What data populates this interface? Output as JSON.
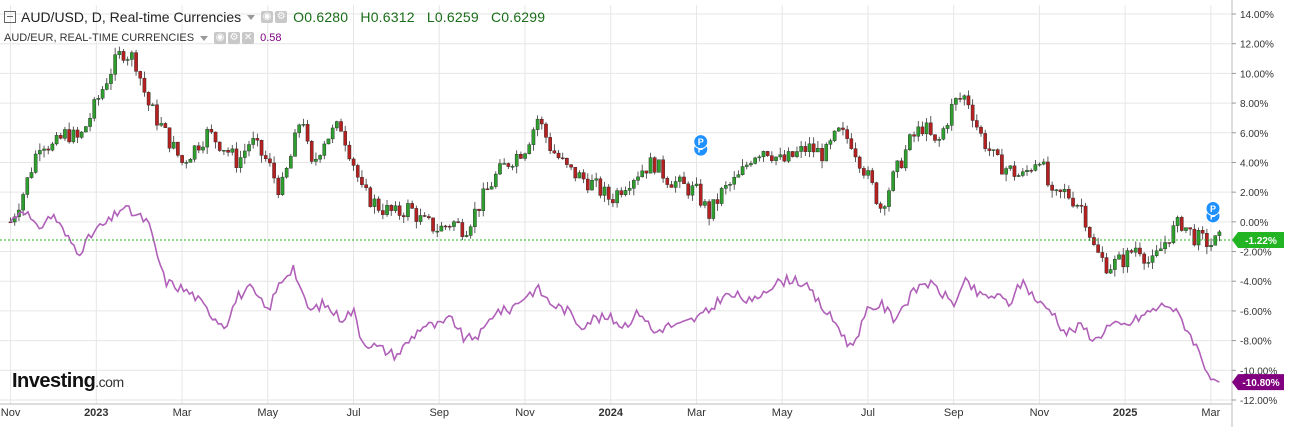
{
  "header": {
    "primary_title": "AUD/USD, D, Real-time Currencies",
    "open": "O0.6280",
    "high": "H0.6312",
    "low": "L0.6259",
    "close": "C0.6299",
    "secondary_title": "AUD/EUR, REAL-TIME CURRENCIES",
    "secondary_value": "0.58"
  },
  "logo": {
    "brand": "Investing",
    "suffix": ".com"
  },
  "colors": {
    "up": "#2e9e2e",
    "down": "#b52020",
    "compare_line": "#b060b8",
    "current_green": "#22b422",
    "current_purple": "#800080",
    "grid": "#e6e6e6",
    "event_marker": "#1e90ff"
  },
  "chart_data": {
    "type": "line",
    "title": "AUD/USD, D, Real-time Currencies",
    "comparison": "AUD/EUR, REAL-TIME CURRENCIES",
    "y_unit": "percent change",
    "ylim": [
      -12,
      14
    ],
    "y_ticks": [
      "14.00%",
      "12.00%",
      "10.00%",
      "8.00%",
      "6.00%",
      "4.00%",
      "2.00%",
      "0.00%",
      "-2.00%",
      "-4.00%",
      "-6.00%",
      "-8.00%",
      "-10.00%",
      "-12.00%"
    ],
    "y_tick_values": [
      14,
      12,
      10,
      8,
      6,
      4,
      2,
      0,
      -2,
      -4,
      -6,
      -8,
      -10,
      -12
    ],
    "x_ticks": [
      "Nov",
      "2023",
      "Mar",
      "May",
      "Jul",
      "Sep",
      "Nov",
      "2024",
      "Mar",
      "May",
      "Jul",
      "Sep",
      "Nov",
      "2025",
      "Mar"
    ],
    "x_tick_bold": [
      false,
      true,
      false,
      false,
      false,
      false,
      false,
      true,
      false,
      false,
      false,
      false,
      false,
      true,
      false
    ],
    "x_tick_months": [
      0,
      2,
      4,
      6,
      8,
      10,
      12,
      14,
      16,
      18,
      20,
      22,
      24,
      26,
      28
    ],
    "x_range_months": [
      -0.2,
      28.4
    ],
    "grid": true,
    "series": [
      {
        "name": "AUD/USD",
        "style": "candlestick",
        "x_months": [
          0,
          0.3,
          0.7,
          1,
          1.3,
          1.6,
          2,
          2.3,
          2.6,
          2.9,
          3.2,
          3.6,
          4,
          4.3,
          4.6,
          5,
          5.3,
          5.6,
          6,
          6.3,
          6.6,
          6.8,
          7,
          7.3,
          7.7,
          8,
          8.2,
          8.6,
          9,
          9.3,
          9.6,
          10,
          10.3,
          10.6,
          11,
          11.3,
          11.6,
          12,
          12.3,
          12.6,
          13,
          13.3,
          13.6,
          14,
          14.3,
          14.7,
          15,
          15.3,
          15.6,
          16,
          16.3,
          16.6,
          17,
          17.3,
          17.6,
          18,
          18.3,
          18.6,
          19,
          19.3,
          19.6,
          20,
          20.3,
          20.6,
          21,
          21.3,
          21.6,
          22,
          22.3,
          22.6,
          23,
          23.3,
          23.6,
          24,
          24.3,
          24.6,
          25,
          25.3,
          25.6,
          26,
          26.3,
          26.6,
          27,
          27.3,
          27.6,
          28,
          28.2
        ],
        "values": [
          0.0,
          2.0,
          5.5,
          5.0,
          6.0,
          5.5,
          8.0,
          10.0,
          11.5,
          11.0,
          8.0,
          6.0,
          4.0,
          5.0,
          6.0,
          5.0,
          4.0,
          5.5,
          4.0,
          2.0,
          5.0,
          7.5,
          3.5,
          5.5,
          6.5,
          4.0,
          2.0,
          1.0,
          0.5,
          1.0,
          0.0,
          -0.5,
          0.0,
          -0.5,
          1.5,
          3.0,
          4.0,
          5.0,
          7.0,
          5.0,
          3.5,
          3.0,
          2.5,
          1.5,
          2.5,
          3.5,
          4.0,
          3.0,
          2.5,
          2.0,
          0.5,
          2.0,
          3.0,
          4.5,
          5.0,
          4.0,
          4.5,
          5.0,
          4.5,
          6.0,
          5.5,
          3.0,
          1.0,
          3.0,
          5.5,
          6.5,
          5.0,
          8.0,
          8.5,
          6.0,
          4.0,
          3.5,
          3.0,
          4.5,
          1.5,
          2.0,
          1.0,
          -2.0,
          -3.0,
          -2.5,
          -1.5,
          -3.0,
          -1.0,
          0.0,
          -1.0,
          -1.5,
          -1.2
        ],
        "current_label": "-1.22%",
        "current_value": -1.22
      },
      {
        "name": "AUD/EUR",
        "style": "line",
        "x_months": [
          0,
          0.3,
          0.6,
          1,
          1.3,
          1.6,
          2,
          2.3,
          2.6,
          2.9,
          3.2,
          3.6,
          4,
          4.3,
          4.6,
          5,
          5.3,
          5.6,
          6,
          6.3,
          6.6,
          6.8,
          7,
          7.3,
          7.7,
          8,
          8.2,
          8.6,
          9,
          9.3,
          9.6,
          10,
          10.3,
          10.6,
          11,
          11.3,
          11.6,
          12,
          12.3,
          12.6,
          13,
          13.3,
          13.6,
          14,
          14.3,
          14.7,
          15,
          15.3,
          15.6,
          16,
          16.3,
          16.6,
          17,
          17.3,
          17.6,
          18,
          18.3,
          18.6,
          19,
          19.3,
          19.6,
          20,
          20.3,
          20.6,
          21,
          21.3,
          21.6,
          22,
          22.3,
          22.6,
          23,
          23.3,
          23.6,
          24,
          24.3,
          24.6,
          25,
          25.3,
          25.6,
          26,
          26.3,
          26.6,
          27,
          27.3,
          27.6,
          28,
          28.2
        ],
        "values": [
          0.0,
          1.0,
          -0.5,
          0.5,
          -1.0,
          -2.0,
          -0.5,
          0.0,
          1.0,
          0.5,
          0.0,
          -4.0,
          -4.5,
          -5.0,
          -6.0,
          -7.0,
          -5.0,
          -4.5,
          -6.0,
          -4.0,
          -3.0,
          -5.0,
          -6.0,
          -5.5,
          -6.5,
          -6.0,
          -8.0,
          -8.5,
          -9.0,
          -8.0,
          -7.0,
          -7.0,
          -6.5,
          -8.0,
          -7.5,
          -6.0,
          -6.0,
          -5.0,
          -4.5,
          -5.5,
          -6.0,
          -7.0,
          -6.5,
          -6.5,
          -7.0,
          -6.0,
          -7.5,
          -7.0,
          -7.0,
          -6.5,
          -6.0,
          -5.0,
          -5.0,
          -5.5,
          -4.5,
          -4.0,
          -3.8,
          -4.5,
          -6.0,
          -7.0,
          -8.5,
          -6.0,
          -5.5,
          -6.5,
          -5.0,
          -4.0,
          -4.5,
          -5.5,
          -4.0,
          -5.0,
          -5.0,
          -5.5,
          -4.0,
          -5.5,
          -6.0,
          -7.5,
          -7.0,
          -8.0,
          -7.0,
          -7.0,
          -6.5,
          -6.0,
          -5.5,
          -6.5,
          -8.0,
          -10.5,
          -10.8
        ],
        "current_label": "-10.80%",
        "current_value": -10.8
      }
    ],
    "event_markers": [
      {
        "label": "P",
        "x_month": 16.1,
        "value": 4.9
      },
      {
        "label": "P",
        "x_month": 16.1,
        "value": 5.4
      },
      {
        "label": "P",
        "x_month": 28.05,
        "value": 0.4
      },
      {
        "label": "P",
        "x_month": 28.05,
        "value": 0.9
      }
    ]
  }
}
